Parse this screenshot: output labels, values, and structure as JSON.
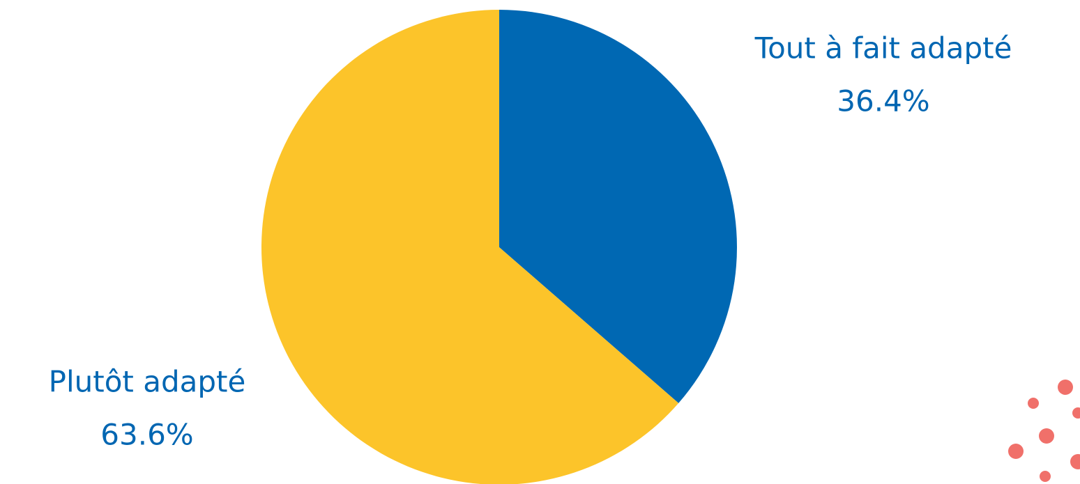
{
  "chart_data": {
    "type": "pie",
    "categories": [
      "Tout à fait adapté",
      "Plutôt adapté"
    ],
    "values": [
      36.4,
      63.6
    ],
    "value_labels": [
      "36.4%",
      "63.6%"
    ],
    "colors": [
      "#0068b3",
      "#fcc42a"
    ]
  }
}
